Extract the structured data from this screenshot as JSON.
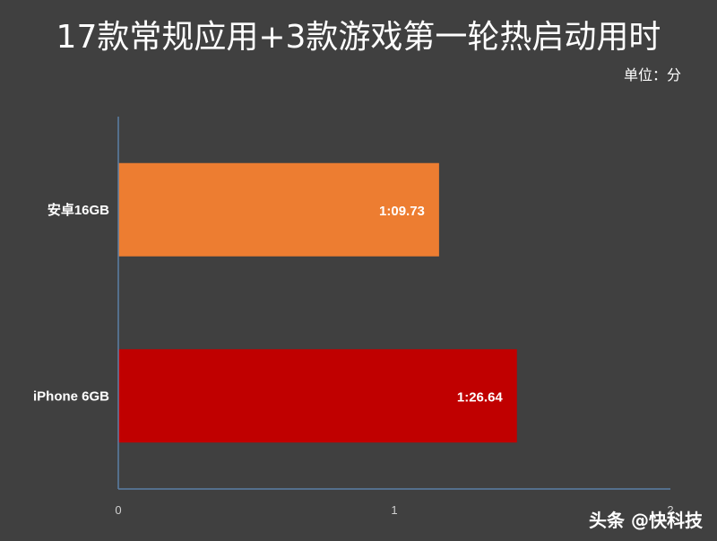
{
  "chart_data": {
    "type": "bar",
    "orientation": "horizontal",
    "title": "17款常规应用+3款游戏第一轮热启动用时",
    "unit_label": "单位：分",
    "categories": [
      "安卓16GB",
      "iPhone 6GB"
    ],
    "values": [
      1.162,
      1.444
    ],
    "data_labels": [
      "1:09.73",
      "1:26.64"
    ],
    "bar_colors": [
      "#ED7D31",
      "#C00000"
    ],
    "xlim": [
      0,
      2
    ],
    "x_ticks": [
      0,
      1,
      2
    ],
    "x_tick_labels": [
      "0",
      "1",
      "2"
    ],
    "grid": false,
    "legend": "none"
  },
  "watermark": "头条 @快科技",
  "colors": {
    "background": "#404040",
    "axis": "#5B7FA6",
    "text": "#FFFFFF"
  }
}
